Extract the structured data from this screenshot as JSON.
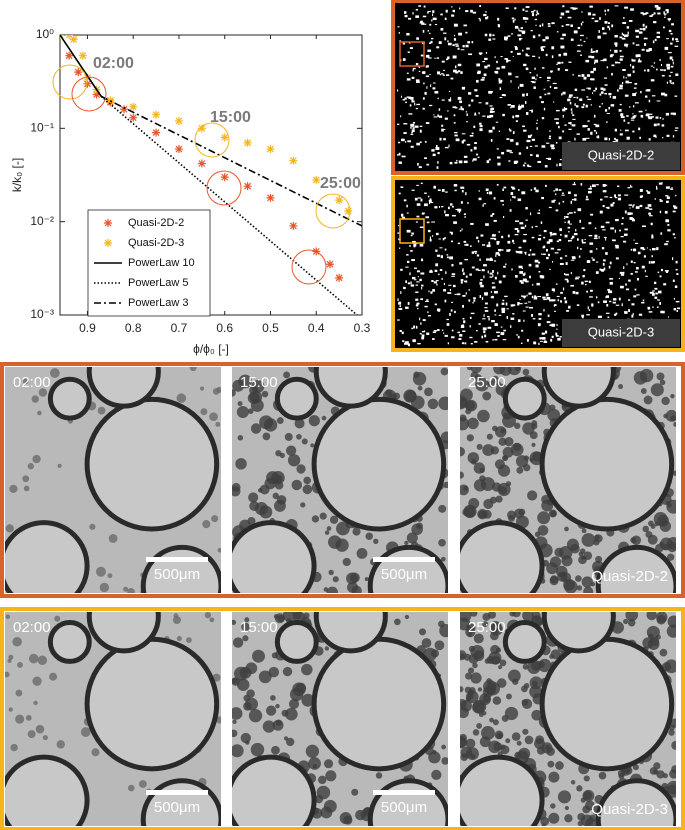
{
  "chart_data": {
    "type": "scatter",
    "xlabel": "ϕ/ϕ₀ [-]",
    "ylabel": "k/k₀ [-]",
    "xlim": [
      0.96,
      0.3
    ],
    "xticks": [
      0.9,
      0.8,
      0.7,
      0.6,
      0.5,
      0.4,
      0.3
    ],
    "ylim": [
      0.001,
      1
    ],
    "ylog": true,
    "yticks": [
      {
        "value": 1,
        "label": "10⁰"
      },
      {
        "value": 0.1,
        "label": "10⁻¹"
      },
      {
        "value": 0.01,
        "label": "10⁻²"
      },
      {
        "value": 0.001,
        "label": "10⁻³"
      }
    ],
    "annotations": [
      "02:00",
      "15:00",
      "25:00"
    ],
    "legend": "lower left",
    "series": [
      {
        "name": "Quasi-2D-2",
        "color": "#e8552a",
        "marker": "asterisk",
        "x": [
          0.96,
          0.94,
          0.92,
          0.9,
          0.88,
          0.85,
          0.82,
          0.8,
          0.75,
          0.7,
          0.65,
          0.6,
          0.55,
          0.5,
          0.45,
          0.4,
          0.37,
          0.35
        ],
        "values": [
          1,
          0.6,
          0.4,
          0.3,
          0.23,
          0.19,
          0.16,
          0.13,
          0.09,
          0.06,
          0.042,
          0.03,
          0.024,
          0.018,
          0.009,
          0.0048,
          0.0035,
          0.0025
        ]
      },
      {
        "name": "Quasi-2D-3",
        "color": "#f5b41a",
        "marker": "asterisk",
        "x": [
          0.96,
          0.94,
          0.93,
          0.91,
          0.9,
          0.88,
          0.85,
          0.8,
          0.75,
          0.7,
          0.65,
          0.6,
          0.55,
          0.5,
          0.45,
          0.4,
          0.35,
          0.33
        ],
        "values": [
          1,
          1,
          0.9,
          0.6,
          0.35,
          0.26,
          0.2,
          0.17,
          0.14,
          0.12,
          0.1,
          0.08,
          0.07,
          0.06,
          0.045,
          0.028,
          0.017,
          0.013
        ]
      },
      {
        "name": "PowerLaw 10",
        "color": "#000000",
        "line": "solid",
        "x": [
          0.96,
          0.87
        ],
        "values": [
          1,
          0.22
        ]
      },
      {
        "name": "PowerLaw 5",
        "color": "#000000",
        "line": "dotted",
        "x": [
          0.87,
          0.3
        ],
        "values": [
          0.22,
          0.0009
        ]
      },
      {
        "name": "PowerLaw 3",
        "color": "#000000",
        "line": "dashdot",
        "x": [
          0.87,
          0.3
        ],
        "values": [
          0.22,
          0.009
        ]
      }
    ]
  },
  "figures": {
    "binary": [
      "Quasi-2D-2",
      "Quasi-2D-3"
    ],
    "sequences": [
      {
        "sample": "Quasi-2D-2",
        "times": [
          "02:00",
          "15:00",
          "25:00"
        ],
        "scale_bars": [
          "500μm",
          "500μm"
        ]
      },
      {
        "sample": "Quasi-2D-3",
        "times": [
          "02:00",
          "15:00",
          "25:00"
        ],
        "scale_bars": [
          "500μm",
          "500μm"
        ]
      }
    ]
  }
}
